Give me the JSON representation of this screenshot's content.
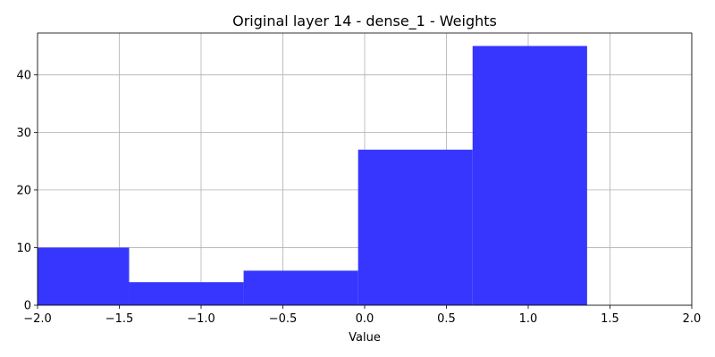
{
  "chart_data": {
    "type": "bar",
    "title": "Original layer 14 - dense_1 - Weights",
    "xlabel": "Value",
    "ylabel": "",
    "xlim": [
      -2.0,
      2.0
    ],
    "ylim": [
      0,
      47.25
    ],
    "grid": true,
    "bar_color": "#3636ff",
    "bins": [
      {
        "x0": -2.12,
        "x1": -1.44,
        "count": 10
      },
      {
        "x0": -1.44,
        "x1": -0.74,
        "count": 4
      },
      {
        "x0": -0.74,
        "x1": -0.04,
        "count": 6
      },
      {
        "x0": -0.04,
        "x1": 0.66,
        "count": 27
      },
      {
        "x0": 0.66,
        "x1": 1.36,
        "count": 45
      }
    ],
    "x_ticks": [
      -2.0,
      -1.5,
      -1.0,
      -0.5,
      0.0,
      0.5,
      1.0,
      1.5,
      2.0
    ],
    "x_tick_labels": [
      "−2.0",
      "−1.5",
      "−1.0",
      "−0.5",
      "0.0",
      "0.5",
      "1.0",
      "1.5",
      "2.0"
    ],
    "y_ticks": [
      0,
      10,
      20,
      30,
      40
    ],
    "y_tick_labels": [
      "0",
      "10",
      "20",
      "30",
      "40"
    ]
  }
}
